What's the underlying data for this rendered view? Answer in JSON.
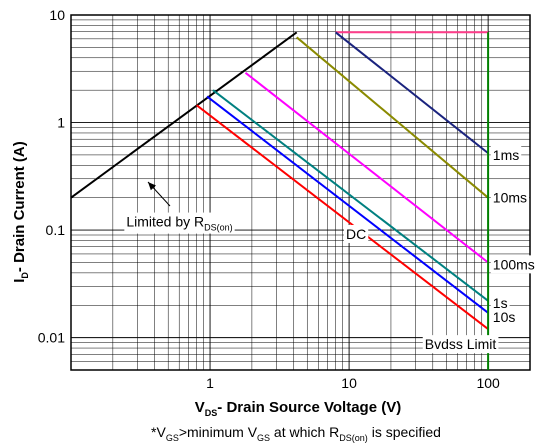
{
  "chart_data": {
    "type": "line",
    "title": "",
    "xlabel": {
      "main": "V",
      "sub": "DS",
      "rest": "- Drain Source Voltage (V)"
    },
    "ylabel": {
      "main": "I",
      "sub": "D",
      "rest": "- Drain Current (A)"
    },
    "x_scale": "log",
    "y_scale": "log",
    "xlim": [
      0.1,
      200
    ],
    "ylim": [
      0.005,
      10
    ],
    "x_tick_labels": [
      {
        "value": 1,
        "label": "1"
      },
      {
        "value": 10,
        "label": "10"
      },
      {
        "value": 100,
        "label": "100"
      }
    ],
    "y_tick_labels": [
      {
        "value": 10,
        "label": "10"
      },
      {
        "value": 1,
        "label": "1"
      },
      {
        "value": 0.1,
        "label": "0.1"
      },
      {
        "value": 0.01,
        "label": "0.01"
      }
    ],
    "grid": true,
    "series": [
      {
        "id": "rds-limit",
        "color": "#000000",
        "points": [
          [
            0.1,
            0.2
          ],
          [
            4.2,
            6.9
          ]
        ]
      },
      {
        "id": "current-limit",
        "color": "#ff3d8b",
        "points": [
          [
            8,
            6.9
          ],
          [
            100,
            6.9
          ]
        ]
      },
      {
        "id": "1ms",
        "color": "#1a237e",
        "points": [
          [
            8,
            6.9
          ],
          [
            100,
            0.52
          ]
        ]
      },
      {
        "id": "10ms",
        "color": "#8a8a00",
        "points": [
          [
            4.2,
            6.2
          ],
          [
            100,
            0.2
          ]
        ]
      },
      {
        "id": "100ms",
        "color": "#ff00ff",
        "points": [
          [
            1.8,
            2.9
          ],
          [
            100,
            0.05
          ]
        ]
      },
      {
        "id": "1s",
        "color": "#008080",
        "points": [
          [
            1.05,
            2.0
          ],
          [
            100,
            0.022
          ]
        ]
      },
      {
        "id": "10s",
        "color": "#0000ff",
        "points": [
          [
            0.95,
            1.75
          ],
          [
            100,
            0.017
          ]
        ]
      },
      {
        "id": "dc",
        "color": "#ff0000",
        "points": [
          [
            0.8,
            1.45
          ],
          [
            100,
            0.012
          ]
        ]
      },
      {
        "id": "bvdss",
        "color": "#008000",
        "points": [
          [
            100,
            6.9
          ],
          [
            100,
            0.005
          ]
        ]
      }
    ],
    "annotations": [
      {
        "id": "1ms",
        "text": "1ms",
        "x": 108,
        "y": 0.5
      },
      {
        "id": "10ms",
        "text": "10ms",
        "x": 108,
        "y": 0.2
      },
      {
        "id": "100ms",
        "text": "100ms",
        "x": 108,
        "y": 0.048
      },
      {
        "id": "1s",
        "text": "1s",
        "x": 108,
        "y": 0.021
      },
      {
        "id": "10s",
        "text": "10s",
        "x": 108,
        "y": 0.0155
      },
      {
        "id": "dc",
        "text": "DC",
        "x": 9.5,
        "y": 0.092
      },
      {
        "id": "bvdss",
        "text": "Bvdss Limit",
        "x": 35,
        "y": 0.0087
      },
      {
        "id": "rds",
        "text": "Limited by R",
        "sub": "DS(on)",
        "x": 0.25,
        "y": 0.12
      }
    ]
  },
  "footnote": {
    "p1": "*V",
    "s1": "GS",
    "p2": ">minimum V",
    "s2": "GS",
    "p3": " at which R",
    "s3": "DS(on)",
    "p4": " is specified"
  }
}
